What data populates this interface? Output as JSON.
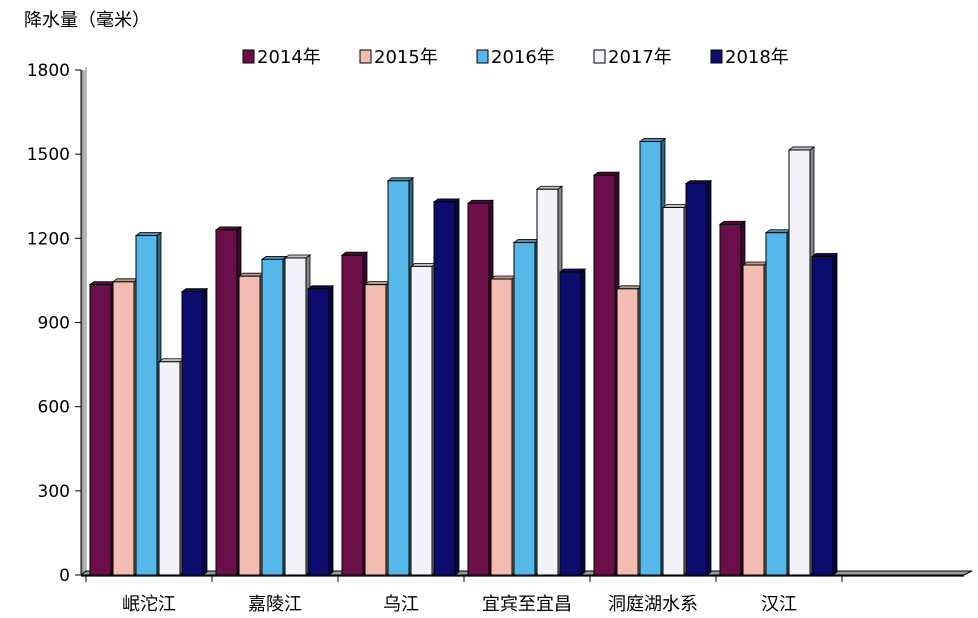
{
  "chart_data": {
    "type": "bar",
    "ylabel": "降水量（毫米）",
    "ylim": [
      0,
      1800
    ],
    "yticks": [
      0,
      300,
      600,
      900,
      1200,
      1500,
      1800
    ],
    "categories": [
      "岷沱江",
      "嘉陵江",
      "乌江",
      "宜宾至宜昌",
      "洞庭湖水系",
      "汉江"
    ],
    "series": [
      {
        "name": "2014年",
        "color": "#6a0f4a",
        "values": [
          1035,
          1230,
          1140,
          1325,
          1425,
          1250
        ]
      },
      {
        "name": "2015年",
        "color": "#f2bcb2",
        "values": [
          1045,
          1065,
          1035,
          1055,
          1020,
          1105
        ]
      },
      {
        "name": "2016年",
        "color": "#55b8e8",
        "values": [
          1210,
          1125,
          1405,
          1185,
          1545,
          1220
        ]
      },
      {
        "name": "2017年",
        "color": "#f2f2f8",
        "values": [
          760,
          1130,
          1100,
          1375,
          1310,
          1515
        ]
      },
      {
        "name": "2018年",
        "color": "#0c0c6e",
        "values": [
          1010,
          1020,
          1330,
          1080,
          1395,
          1135
        ]
      }
    ],
    "grid": false,
    "legend_position": "top"
  }
}
